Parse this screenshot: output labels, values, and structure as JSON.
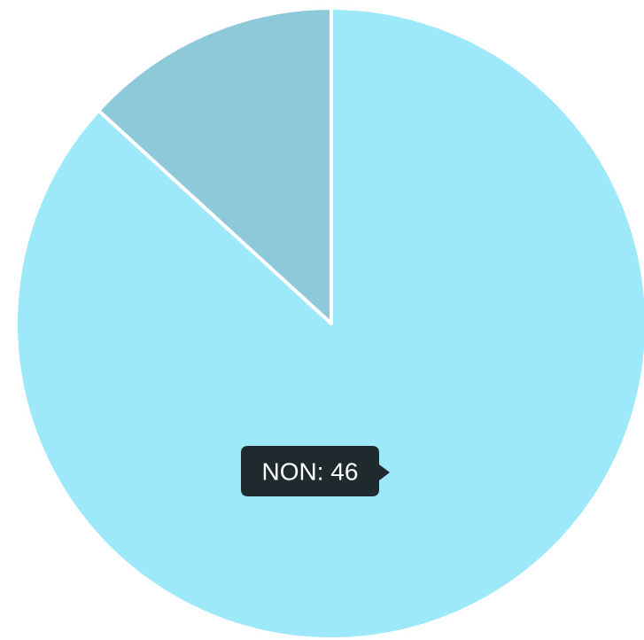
{
  "chart_data": {
    "type": "pie",
    "categories": [
      "NON",
      null
    ],
    "values": [
      46,
      7
    ],
    "value_labels": [
      "NON: 46",
      null
    ],
    "colors": [
      "#9de8f9",
      "#8ec9d9"
    ]
  }
}
